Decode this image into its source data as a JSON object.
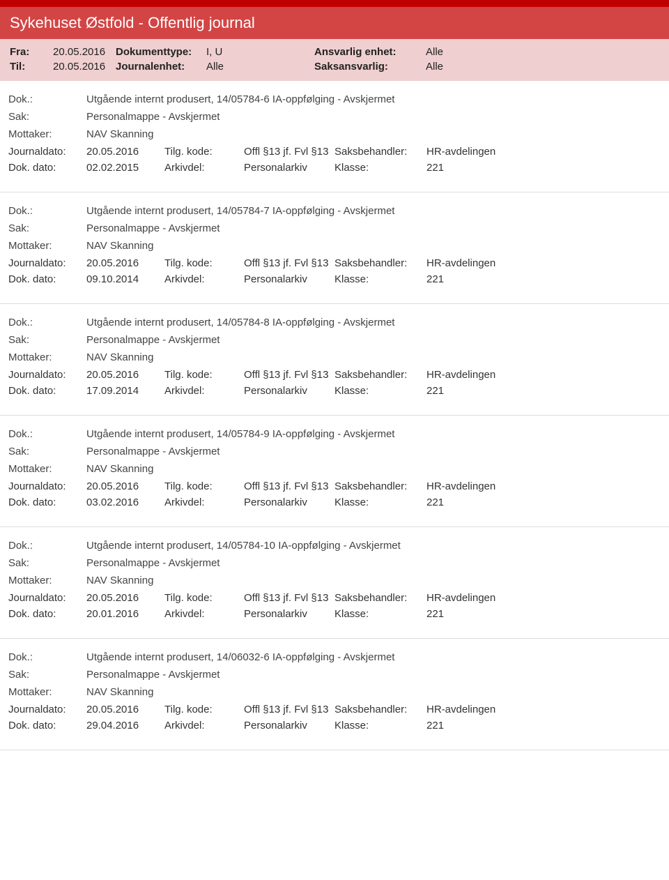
{
  "header": {
    "title": "Sykehuset Østfold - Offentlig journal"
  },
  "filter": {
    "fra_label": "Fra:",
    "fra_value": "20.05.2016",
    "til_label": "Til:",
    "til_value": "20.05.2016",
    "doktype_label": "Dokumenttype:",
    "doktype_value": "I, U",
    "journalenhet_label": "Journalenhet:",
    "journalenhet_value": "Alle",
    "ansvarlig_label": "Ansvarlig enhet:",
    "ansvarlig_value": "Alle",
    "saksansvarlig_label": "Saksansvarlig:",
    "saksansvarlig_value": "Alle"
  },
  "labels": {
    "dok": "Dok.:",
    "sak": "Sak:",
    "mottaker": "Mottaker:",
    "journaldato": "Journaldato:",
    "dokdato": "Dok. dato:",
    "tilgkode": "Tilg. kode:",
    "arkivdel": "Arkivdel:",
    "saksbehandler": "Saksbehandler:",
    "klasse": "Klasse:"
  },
  "entries": [
    {
      "dok": "Utgående internt produsert, 14/05784-6 IA-oppfølging - Avskjermet",
      "sak": "Personalmappe - Avskjermet",
      "mottaker": "NAV Skanning",
      "journaldato": "20.05.2016",
      "dokdato": "02.02.2015",
      "tilgkode": "Offl §13 jf. Fvl §13",
      "arkivdel": "Personalarkiv",
      "saksbehandler": "HR-avdelingen",
      "klasse": "221"
    },
    {
      "dok": "Utgående internt produsert, 14/05784-7 IA-oppfølging - Avskjermet",
      "sak": "Personalmappe - Avskjermet",
      "mottaker": "NAV Skanning",
      "journaldato": "20.05.2016",
      "dokdato": "09.10.2014",
      "tilgkode": "Offl §13 jf. Fvl §13",
      "arkivdel": "Personalarkiv",
      "saksbehandler": "HR-avdelingen",
      "klasse": "221"
    },
    {
      "dok": "Utgående internt produsert, 14/05784-8 IA-oppfølging - Avskjermet",
      "sak": "Personalmappe - Avskjermet",
      "mottaker": "NAV Skanning",
      "journaldato": "20.05.2016",
      "dokdato": "17.09.2014",
      "tilgkode": "Offl §13 jf. Fvl §13",
      "arkivdel": "Personalarkiv",
      "saksbehandler": "HR-avdelingen",
      "klasse": "221"
    },
    {
      "dok": "Utgående internt produsert, 14/05784-9 IA-oppfølging - Avskjermet",
      "sak": "Personalmappe - Avskjermet",
      "mottaker": "NAV Skanning",
      "journaldato": "20.05.2016",
      "dokdato": "03.02.2016",
      "tilgkode": "Offl §13 jf. Fvl §13",
      "arkivdel": "Personalarkiv",
      "saksbehandler": "HR-avdelingen",
      "klasse": "221"
    },
    {
      "dok": "Utgående internt produsert, 14/05784-10 IA-oppfølging - Avskjermet",
      "sak": "Personalmappe - Avskjermet",
      "mottaker": "NAV Skanning",
      "journaldato": "20.05.2016",
      "dokdato": "20.01.2016",
      "tilgkode": "Offl §13 jf. Fvl §13",
      "arkivdel": "Personalarkiv",
      "saksbehandler": "HR-avdelingen",
      "klasse": "221"
    },
    {
      "dok": "Utgående internt produsert, 14/06032-6 IA-oppfølging - Avskjermet",
      "sak": "Personalmappe - Avskjermet",
      "mottaker": "NAV Skanning",
      "journaldato": "20.05.2016",
      "dokdato": "29.04.2016",
      "tilgkode": "Offl §13 jf. Fvl §13",
      "arkivdel": "Personalarkiv",
      "saksbehandler": "HR-avdelingen",
      "klasse": "221"
    }
  ]
}
